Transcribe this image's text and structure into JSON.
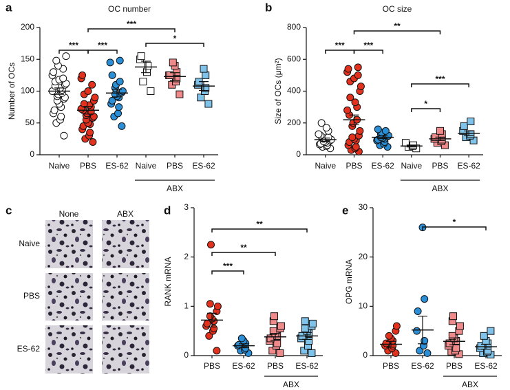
{
  "chart_data": [
    {
      "type": "dot",
      "panel_label": "a",
      "title": "OC number",
      "y_label": "Number of OCs",
      "categories": [
        "Naive",
        "PBS",
        "ES-62",
        "Naive",
        "PBS",
        "ES-62"
      ],
      "colors": [
        "#ffffff",
        "#e2311d",
        "#2a8fd6",
        "#ffffff",
        "#f08a8a",
        "#7fc3ea"
      ],
      "markers": [
        "circle",
        "circle",
        "circle",
        "square",
        "square",
        "square"
      ],
      "points": [
        [
          30,
          50,
          55,
          60,
          65,
          70,
          75,
          80,
          85,
          88,
          90,
          92,
          95,
          97,
          100,
          100,
          102,
          105,
          108,
          110,
          112,
          115,
          118,
          120,
          125,
          130,
          135,
          140,
          148,
          155
        ],
        [
          20,
          25,
          30,
          35,
          40,
          45,
          48,
          50,
          55,
          58,
          60,
          62,
          65,
          68,
          70,
          72,
          75,
          78,
          80,
          85,
          90,
          95,
          100,
          110,
          120,
          125
        ],
        [
          45,
          60,
          65,
          75,
          80,
          85,
          90,
          92,
          95,
          98,
          100,
          105,
          110,
          115,
          125,
          145,
          148
        ],
        [
          100,
          115,
          130,
          140,
          150,
          155
        ],
        [
          95,
          110,
          115,
          120,
          125,
          125,
          130,
          140,
          145
        ],
        [
          80,
          90,
          100,
          105,
          110,
          115,
          125,
          135
        ]
      ],
      "means": [
        100,
        70,
        97,
        138,
        123,
        108
      ],
      "errors": [
        5,
        6,
        6,
        9,
        6,
        7
      ],
      "ylim": [
        0,
        200
      ],
      "yticks": [
        0,
        50,
        100,
        150,
        200
      ],
      "group_label": {
        "text": "ABX",
        "from": 3,
        "to": 5
      },
      "significance": [
        {
          "from": 0,
          "to": 1,
          "label": "***"
        },
        {
          "from": 1,
          "to": 2,
          "label": "***"
        },
        {
          "from": 1,
          "to": 4,
          "label": "***"
        },
        {
          "from": 3,
          "to": 5,
          "label": "*"
        }
      ]
    },
    {
      "type": "dot",
      "panel_label": "b",
      "title": "OC size",
      "y_label": "Size of OCs (μm²)",
      "categories": [
        "Naive",
        "PBS",
        "ES-62",
        "Naive",
        "PBS",
        "ES-62"
      ],
      "colors": [
        "#ffffff",
        "#e2311d",
        "#2a8fd6",
        "#ffffff",
        "#f08a8a",
        "#7fc3ea"
      ],
      "markers": [
        "circle",
        "circle",
        "circle",
        "square",
        "square",
        "square"
      ],
      "points": [
        [
          40,
          50,
          55,
          60,
          65,
          70,
          75,
          80,
          85,
          90,
          95,
          100,
          105,
          110,
          120,
          130,
          150,
          170,
          200
        ],
        [
          20,
          30,
          40,
          50,
          60,
          80,
          90,
          100,
          110,
          120,
          150,
          180,
          200,
          220,
          250,
          280,
          300,
          330,
          360,
          400,
          430,
          460,
          480,
          500,
          520,
          540,
          550
        ],
        [
          50,
          60,
          70,
          80,
          90,
          95,
          100,
          105,
          110,
          115,
          120,
          130,
          140,
          150,
          160
        ],
        [
          40,
          50,
          55,
          60,
          75
        ],
        [
          60,
          75,
          85,
          95,
          100,
          110,
          130,
          150
        ],
        [
          90,
          110,
          120,
          130,
          150,
          180,
          210
        ]
      ],
      "means": [
        95,
        220,
        110,
        55,
        100,
        135
      ],
      "errors": [
        10,
        30,
        9,
        6,
        11,
        15
      ],
      "ylim": [
        0,
        800
      ],
      "yticks": [
        0,
        200,
        400,
        600,
        800
      ],
      "group_label": {
        "text": "ABX",
        "from": 3,
        "to": 5
      },
      "significance": [
        {
          "from": 0,
          "to": 1,
          "label": "***"
        },
        {
          "from": 1,
          "to": 2,
          "label": "***"
        },
        {
          "from": 1,
          "to": 4,
          "label": "**"
        },
        {
          "from": 3,
          "to": 5,
          "label": "***"
        },
        {
          "from": 3,
          "to": 4,
          "label": "*"
        }
      ]
    },
    {
      "type": "dot",
      "panel_label": "d",
      "y_label": "RANK mRNA",
      "categories": [
        "PBS",
        "ES-62",
        "PBS",
        "ES-62"
      ],
      "colors": [
        "#e2311d",
        "#2a8fd6",
        "#f08a8a",
        "#7fc3ea"
      ],
      "markers": [
        "circle",
        "circle",
        "square",
        "square"
      ],
      "points": [
        [
          0.1,
          0.4,
          0.5,
          0.55,
          0.6,
          0.65,
          0.7,
          0.75,
          0.8,
          0.9,
          1.0,
          1.05,
          2.25
        ],
        [
          0.05,
          0.1,
          0.12,
          0.15,
          0.2,
          0.22,
          0.25,
          0.3,
          0.35
        ],
        [
          0.05,
          0.1,
          0.2,
          0.25,
          0.3,
          0.35,
          0.4,
          0.45,
          0.5,
          0.55,
          0.6,
          0.7,
          0.8
        ],
        [
          0.05,
          0.1,
          0.2,
          0.3,
          0.35,
          0.4,
          0.45,
          0.5,
          0.55,
          0.6,
          0.65,
          0.7
        ]
      ],
      "means": [
        0.72,
        0.2,
        0.38,
        0.4
      ],
      "errors": [
        0.14,
        0.04,
        0.07,
        0.07
      ],
      "ylim": [
        0,
        3
      ],
      "yticks": [
        0,
        1,
        2,
        3
      ],
      "group_label": {
        "text": "ABX",
        "from": 2,
        "to": 3
      },
      "significance": [
        {
          "from": 0,
          "to": 1,
          "label": "***"
        },
        {
          "from": 0,
          "to": 2,
          "label": "**"
        },
        {
          "from": 0,
          "to": 3,
          "label": "**"
        }
      ]
    },
    {
      "type": "dot",
      "panel_label": "e",
      "y_label": "OPG mRNA",
      "categories": [
        "PBS",
        "ES-62",
        "PBS",
        "ES-62"
      ],
      "colors": [
        "#e2311d",
        "#2a8fd6",
        "#f08a8a",
        "#7fc3ea"
      ],
      "markers": [
        "circle",
        "circle",
        "square",
        "square"
      ],
      "points": [
        [
          0.5,
          1,
          1.5,
          2,
          2,
          2.5,
          3,
          3.5,
          4,
          5,
          6
        ],
        [
          0.5,
          1,
          2,
          3,
          5,
          9,
          11.5,
          26
        ],
        [
          0.3,
          0.8,
          1,
          1.5,
          2,
          2.5,
          3,
          3.5,
          4,
          5,
          6,
          7,
          8
        ],
        [
          0.2,
          0.5,
          0.8,
          1,
          1.5,
          2,
          2.5,
          3,
          4,
          5
        ]
      ],
      "means": [
        2.3,
        5.2,
        2.9,
        1.8
      ],
      "errors": [
        0.6,
        2.8,
        0.7,
        0.5
      ],
      "ylim": [
        0,
        30
      ],
      "yticks": [
        0,
        10,
        20,
        30
      ],
      "group_label": {
        "text": "ABX",
        "from": 2,
        "to": 3
      },
      "significance": [
        {
          "from": 1,
          "to": 3,
          "label": "*"
        }
      ]
    }
  ],
  "image_panel": {
    "panel_label": "c",
    "columns": [
      "None",
      "ABX"
    ],
    "rows": [
      "Naive",
      "PBS",
      "ES-62"
    ]
  }
}
